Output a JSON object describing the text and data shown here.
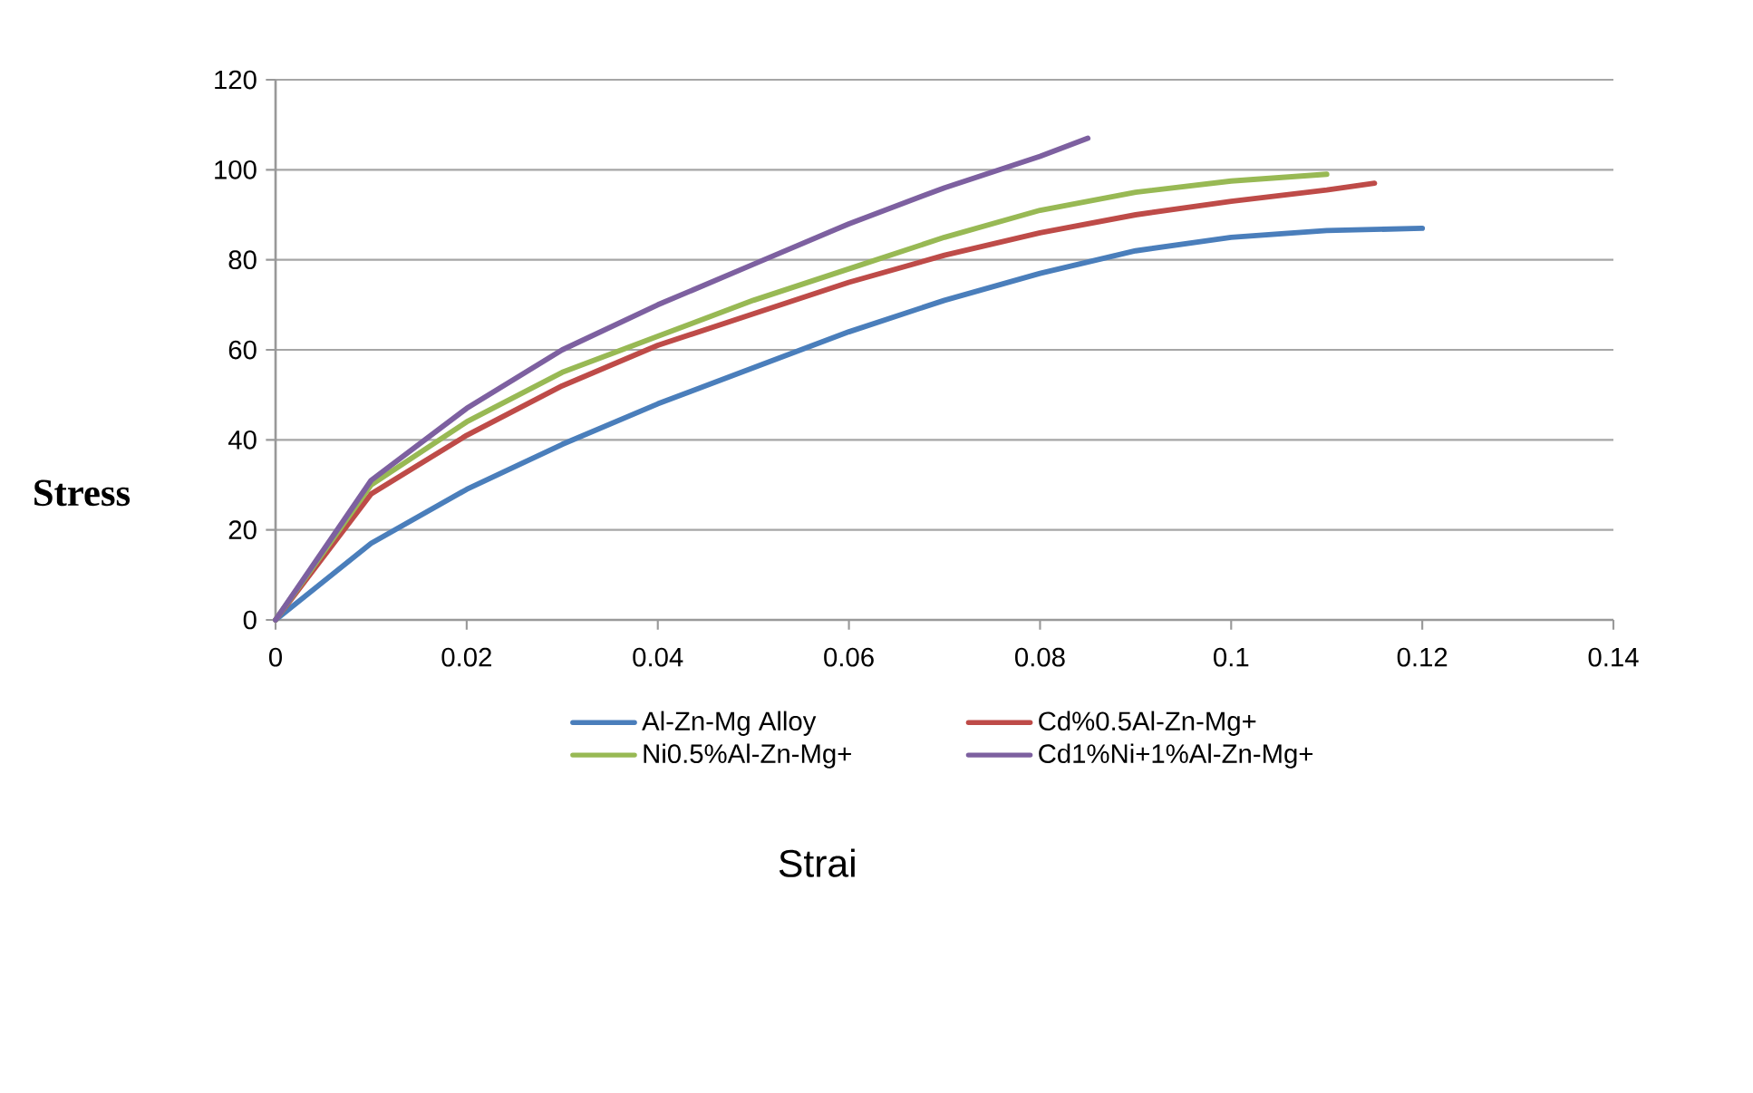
{
  "chart_data": {
    "type": "line",
    "xlabel": "Strai",
    "ylabel": "Stress",
    "xlim": [
      0,
      0.14
    ],
    "xticks": [
      0,
      0.02,
      0.04,
      0.06,
      0.08,
      0.1,
      0.12,
      0.14
    ],
    "ylim": [
      0,
      120
    ],
    "yticks": [
      0,
      20,
      40,
      60,
      80,
      100,
      120
    ],
    "grid": "y",
    "legend": "bottom",
    "marker": "none",
    "line_style": "solid",
    "series": [
      {
        "name": "Al-Zn-Mg Alloy",
        "color": "#4a7ebb",
        "x": [
          0,
          0.01,
          0.02,
          0.03,
          0.04,
          0.05,
          0.06,
          0.07,
          0.08,
          0.09,
          0.1,
          0.11,
          0.12
        ],
        "values": [
          0,
          17,
          29,
          39,
          48,
          56,
          64,
          71,
          77,
          82,
          85,
          86.5,
          87
        ]
      },
      {
        "name": "Cd%0.5Al-Zn-Mg+",
        "color": "#be4b48",
        "x": [
          0,
          0.01,
          0.02,
          0.03,
          0.04,
          0.05,
          0.06,
          0.07,
          0.08,
          0.09,
          0.1,
          0.11,
          0.115
        ],
        "values": [
          0,
          28,
          41,
          52,
          61,
          68,
          75,
          81,
          86,
          90,
          93,
          95.5,
          97
        ]
      },
      {
        "name": "Ni0.5%Al-Zn-Mg+",
        "color": "#98b954",
        "x": [
          0,
          0.01,
          0.02,
          0.03,
          0.04,
          0.05,
          0.06,
          0.07,
          0.08,
          0.09,
          0.1,
          0.11
        ],
        "values": [
          0,
          30,
          44,
          55,
          63,
          71,
          78,
          85,
          91,
          95,
          97.5,
          99
        ]
      },
      {
        "name": "Cd1%Ni+1%Al-Zn-Mg+",
        "color": "#7d60a0",
        "x": [
          0,
          0.01,
          0.02,
          0.03,
          0.04,
          0.05,
          0.06,
          0.07,
          0.08,
          0.085
        ],
        "values": [
          0,
          31,
          47,
          60,
          70,
          79,
          88,
          96,
          103,
          107
        ]
      }
    ]
  }
}
